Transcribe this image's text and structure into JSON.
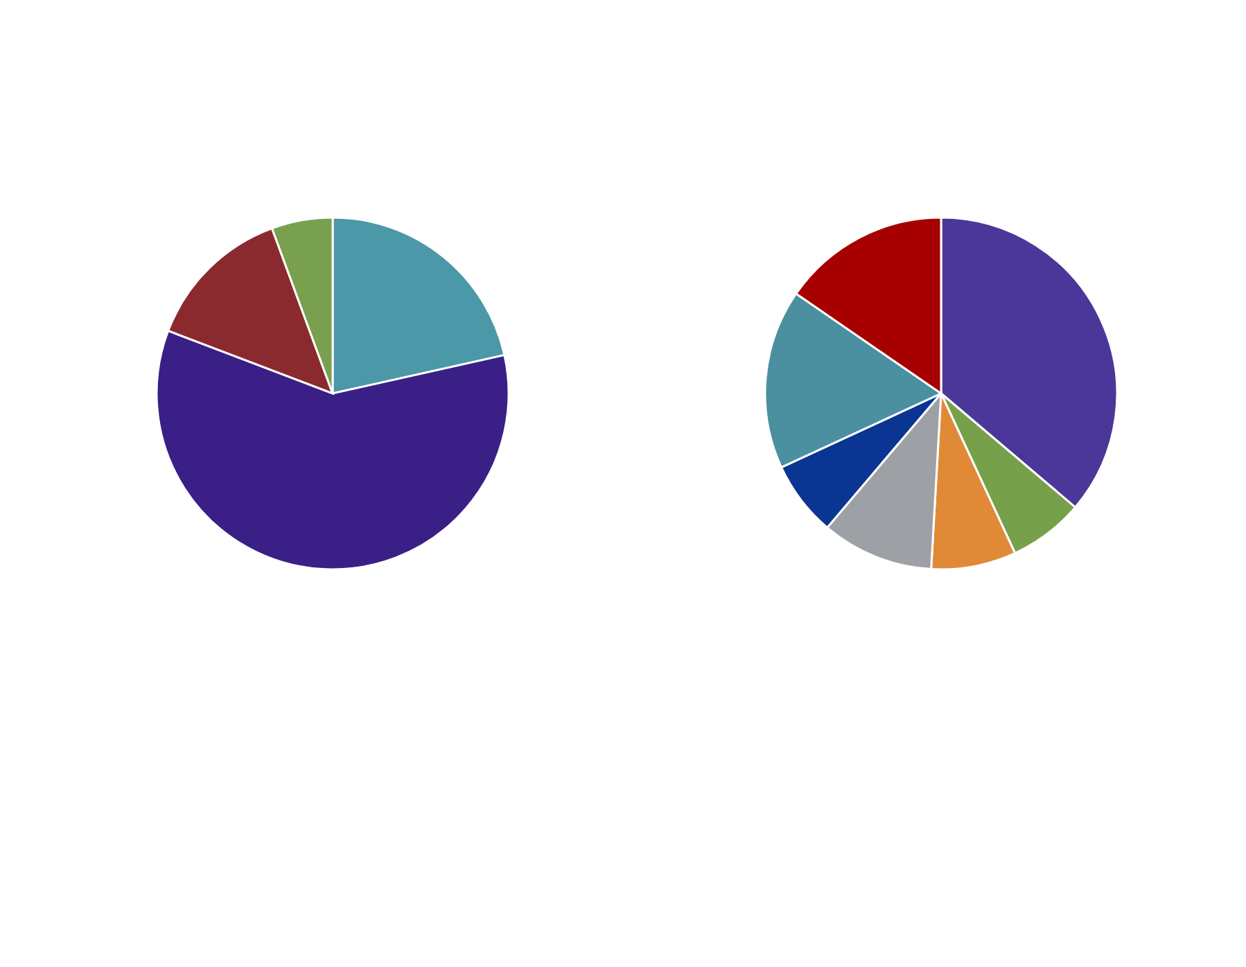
{
  "chart_data": [
    {
      "type": "pie",
      "categories": [
        null,
        null,
        null,
        null
      ],
      "values": [
        21.5,
        59.3,
        13.6,
        5.6
      ],
      "colors": [
        "#4a98a8",
        "#3a1f87",
        "#8b2a2e",
        "#78a04e"
      ]
    },
    {
      "type": "pie",
      "categories": [
        null,
        null,
        null,
        null,
        null,
        null,
        null
      ],
      "values": [
        36.2,
        6.9,
        7.8,
        10.3,
        6.9,
        16.5,
        15.4
      ],
      "colors": [
        "#4b379a",
        "#76a04a",
        "#e08a38",
        "#9da1a6",
        "#0a3592",
        "#4a90a0",
        "#a60000"
      ]
    }
  ]
}
